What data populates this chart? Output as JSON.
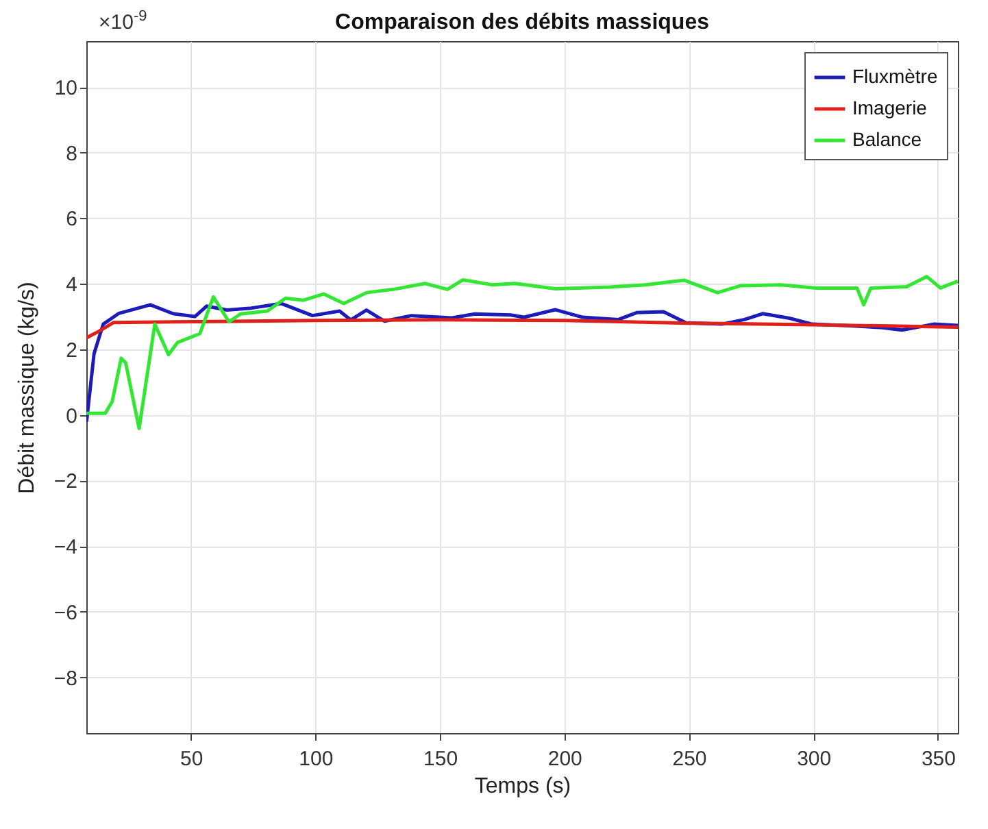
{
  "chart_data": {
    "type": "line",
    "title": "Comparaison des débits massiques",
    "xlabel": "Temps (s)",
    "ylabel": "Débit massique (kg/s)",
    "annotations": [
      "×10$^{-9}$"
    ],
    "xlim": [
      8,
      358
    ],
    "xticks": [
      50,
      100,
      150,
      200,
      250,
      300,
      350
    ],
    "ylim": [
      -9.7,
      11.4
    ],
    "yticks": [
      -8,
      -6,
      -4,
      -2,
      0,
      2,
      4,
      6,
      8,
      10
    ],
    "grid": true,
    "legend": "top right",
    "line_style": "solid",
    "marker": "none",
    "series": [
      {
        "name": "Fluxmètre",
        "color": "#1c1cb8",
        "x": [
          8.1,
          11.1,
          14.8,
          21.1,
          33.7,
          42.8,
          51.6,
          56.3,
          64.5,
          73.5,
          86.2,
          98.8,
          109.7,
          114.2,
          120.5,
          127.8,
          138.6,
          154.8,
          164,
          178.4,
          183.8,
          196.4,
          207.3,
          221.7,
          229,
          239.8,
          248.9,
          263.3,
          272.3,
          279.6,
          290.4,
          299.5,
          312,
          326.6,
          335.6,
          348.3,
          358
        ],
        "values": [
          -0.2,
          1.87,
          2.77,
          3.1,
          3.36,
          3.09,
          3.0,
          3.32,
          3.2,
          3.25,
          3.4,
          3.03,
          3.17,
          2.9,
          3.2,
          2.86,
          3.03,
          2.96,
          3.08,
          3.05,
          2.98,
          3.21,
          2.98,
          2.91,
          3.12,
          3.15,
          2.81,
          2.77,
          2.91,
          3.09,
          2.95,
          2.77,
          2.73,
          2.67,
          2.59,
          2.77,
          2.73
        ]
      },
      {
        "name": "Imagerie",
        "color": "#e0201b",
        "x": [
          8,
          13,
          19,
          60,
          100,
          150,
          200,
          250,
          300,
          358
        ],
        "values": [
          2.35,
          2.55,
          2.82,
          2.85,
          2.88,
          2.9,
          2.88,
          2.8,
          2.75,
          2.68
        ]
      },
      {
        "name": "Balance",
        "color": "#33e633",
        "x": [
          8.1,
          15.6,
          18.4,
          22,
          23.8,
          29.2,
          35.5,
          41,
          44.6,
          53.6,
          59,
          65.3,
          69.9,
          80.7,
          88,
          95.2,
          103.3,
          111.4,
          120.5,
          131.3,
          144,
          153,
          159.3,
          171,
          180.2,
          196.4,
          218,
          232.6,
          248,
          261.5,
          270.6,
          286.8,
          301.2,
          317.5,
          320.2,
          323,
          337.4,
          345.5,
          351,
          358
        ],
        "values": [
          0.05,
          0.05,
          0.41,
          1.73,
          1.59,
          -0.41,
          2.77,
          1.84,
          2.21,
          2.48,
          3.6,
          2.84,
          3.08,
          3.17,
          3.56,
          3.5,
          3.69,
          3.4,
          3.73,
          3.83,
          4.01,
          3.83,
          4.12,
          3.97,
          4.01,
          3.85,
          3.9,
          3.97,
          4.11,
          3.73,
          3.94,
          3.97,
          3.87,
          3.87,
          3.36,
          3.87,
          3.91,
          4.22,
          3.87,
          4.08
        ]
      }
    ]
  }
}
